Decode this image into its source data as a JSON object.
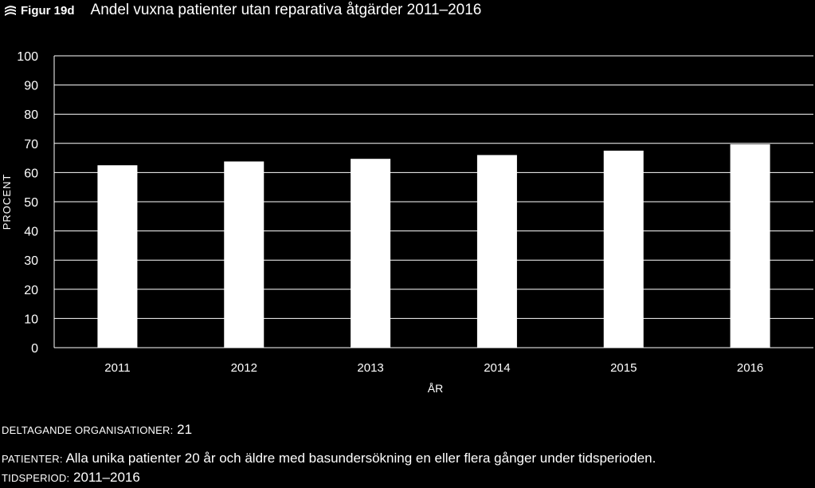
{
  "header": {
    "figure_label": "Figur 19d",
    "title": "Andel vuxna patienter utan reparativa åtgärder 2011–2016"
  },
  "chart_data": {
    "type": "bar",
    "categories": [
      "2011",
      "2012",
      "2013",
      "2014",
      "2015",
      "2016"
    ],
    "values": [
      62.5,
      63.8,
      64.7,
      66.0,
      67.5,
      69.7
    ],
    "ylabel": "PROCENT",
    "xlabel": "ÅR",
    "ylim": [
      0,
      100
    ],
    "yticks": [
      0,
      10,
      20,
      30,
      40,
      50,
      60,
      70,
      80,
      90,
      100
    ],
    "grid": true,
    "colors": {
      "background": "#000000",
      "bar": "#ffffff",
      "grid": "#ffffff",
      "text": "#ffffff"
    }
  },
  "footer": {
    "organisations_key": "DELTAGANDE ORGANISATIONER:",
    "organisations_value": "21",
    "patients_key": "PATIENTER:",
    "patients_value": "Alla unika patienter 20 år och äldre med basundersökning en eller flera gånger under tidsperioden.",
    "period_key": "TIDSPERIOD:",
    "period_value": "2011–2016"
  }
}
